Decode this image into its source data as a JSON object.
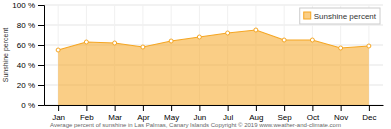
{
  "chart_data": {
    "type": "area",
    "categories": [
      "Jan",
      "Feb",
      "Mar",
      "Apr",
      "May",
      "Jun",
      "Jul",
      "Aug",
      "Sep",
      "Oct",
      "Nov",
      "Dec"
    ],
    "series": [
      {
        "name": "Sunshine percent",
        "color": "#F5A623",
        "values": [
          55,
          63,
          62,
          58,
          64,
          68,
          72,
          75,
          65,
          65,
          57,
          59
        ]
      }
    ],
    "ylabel": "Sunshine percent",
    "caption": "Average percent of sunshine in Las Palmas, Canary Islands   Copyright © 2019 www.weather-and-climate.com",
    "ylim": [
      0,
      100
    ],
    "yticks": [
      {
        "value": 0,
        "label": "0 %"
      },
      {
        "value": 20,
        "label": "20 %"
      },
      {
        "value": 40,
        "label": "40 %"
      },
      {
        "value": 60,
        "label": "60 %"
      },
      {
        "value": 80,
        "label": "80 %"
      },
      {
        "value": 100,
        "label": "100 %"
      }
    ],
    "grid": true,
    "legend": "upper right"
  }
}
